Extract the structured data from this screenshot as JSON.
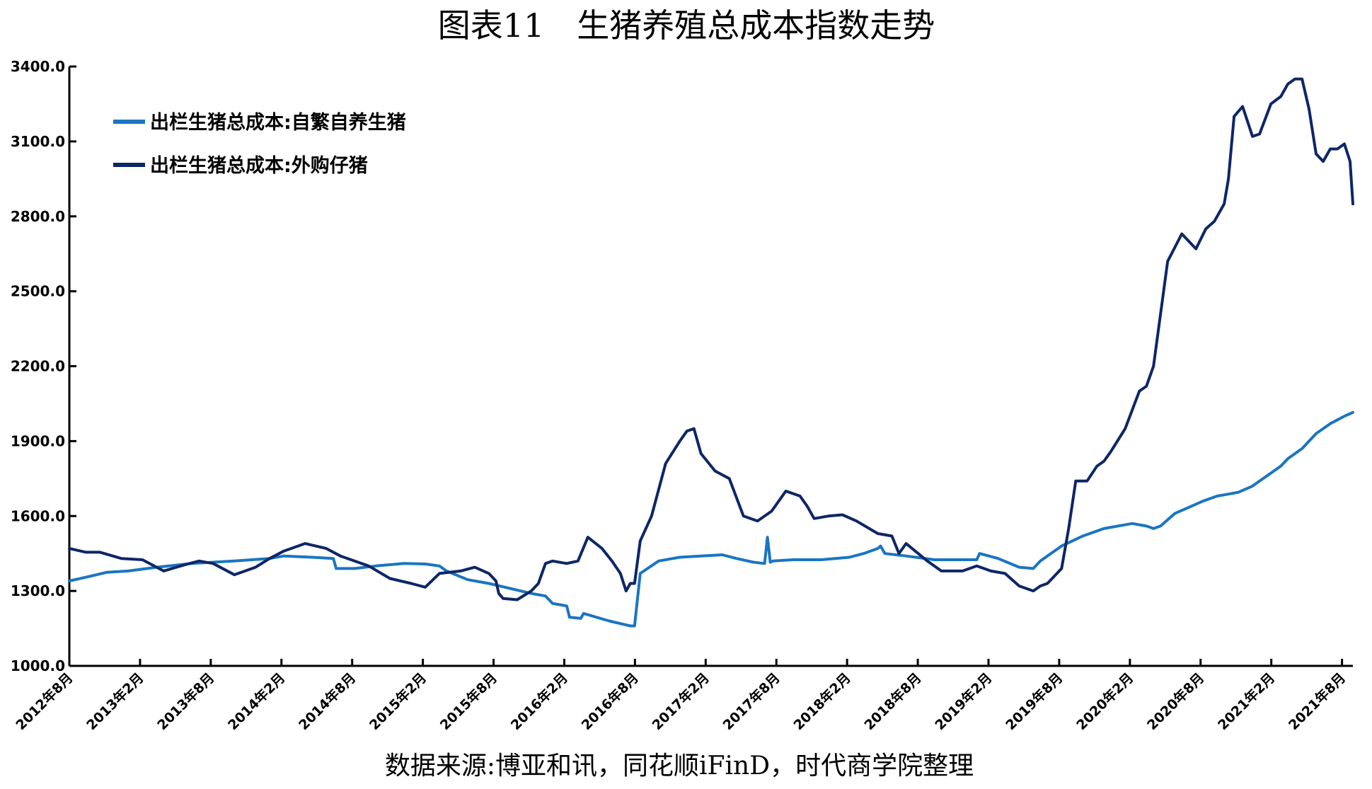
{
  "chart_data": {
    "type": "line",
    "title": "图表11　生猪养殖总成本指数走势",
    "source": "数据来源:博亚和讯，同花顺iFinD，时代商学院整理",
    "xlabel": "",
    "ylabel": "",
    "ylim": [
      1000,
      3400
    ],
    "yticks": [
      1000,
      1300,
      1600,
      1900,
      2200,
      2500,
      2800,
      3100,
      3400
    ],
    "yticks_labels": [
      "1000.0",
      "1300.0",
      "1600.0",
      "1900.0",
      "2200.0",
      "2500.0",
      "2800.0",
      "3100.0",
      "3400.0"
    ],
    "xlim": [
      2012.583,
      2021.66
    ],
    "xticks": [
      2012.583,
      2013.083,
      2013.583,
      2014.083,
      2014.583,
      2015.083,
      2015.583,
      2016.083,
      2016.583,
      2017.083,
      2017.583,
      2018.083,
      2018.583,
      2019.083,
      2019.583,
      2020.083,
      2020.583,
      2021.083,
      2021.583
    ],
    "xticks_labels": [
      "2012年8月",
      "2013年2月",
      "2013年8月",
      "2014年2月",
      "2014年8月",
      "2015年2月",
      "2015年8月",
      "2016年2月",
      "2016年8月",
      "2017年2月",
      "2017年8月",
      "2018年2月",
      "2018年8月",
      "2019年2月",
      "2019年8月",
      "2020年2月",
      "2020年8月",
      "2021年2月",
      "2021年8月"
    ],
    "grid": false,
    "legend_position": "top-left",
    "series": [
      {
        "name": "出栏生猪总成本:自繁自养生猪",
        "color": "#1a75c2",
        "x": [
          2012.583,
          2012.7,
          2012.85,
          2013.0,
          2013.2,
          2013.45,
          2013.75,
          2014.0,
          2014.1,
          2014.3,
          2014.45,
          2014.47,
          2014.6,
          2014.75,
          2014.95,
          2015.1,
          2015.2,
          2015.25,
          2015.4,
          2015.55,
          2015.7,
          2015.85,
          2015.95,
          2016.0,
          2016.05,
          2016.1,
          2016.12,
          2016.2,
          2016.22,
          2016.4,
          2016.55,
          2016.58,
          2016.62,
          2016.75,
          2016.9,
          2017.05,
          2017.2,
          2017.3,
          2017.42,
          2017.5,
          2017.52,
          2017.54,
          2017.56,
          2017.7,
          2017.9,
          2018.1,
          2018.2,
          2018.3,
          2018.32,
          2018.35,
          2018.5,
          2018.7,
          2018.9,
          2019.0,
          2019.02,
          2019.15,
          2019.3,
          2019.4,
          2019.45,
          2019.6,
          2019.75,
          2019.9,
          2020.1,
          2020.2,
          2020.25,
          2020.3,
          2020.4,
          2020.5,
          2020.6,
          2020.7,
          2020.75,
          2020.85,
          2020.95,
          2021.0,
          2021.05,
          2021.1,
          2021.15,
          2021.2,
          2021.3,
          2021.4,
          2021.5,
          2021.6,
          2021.66
        ],
        "values": [
          1340,
          1355,
          1375,
          1380,
          1395,
          1410,
          1420,
          1430,
          1440,
          1435,
          1430,
          1390,
          1390,
          1400,
          1410,
          1408,
          1400,
          1380,
          1345,
          1330,
          1310,
          1290,
          1280,
          1250,
          1245,
          1240,
          1195,
          1190,
          1210,
          1180,
          1160,
          1160,
          1370,
          1420,
          1435,
          1440,
          1445,
          1430,
          1415,
          1410,
          1515,
          1415,
          1420,
          1425,
          1425,
          1435,
          1450,
          1470,
          1480,
          1450,
          1440,
          1425,
          1425,
          1425,
          1450,
          1430,
          1395,
          1390,
          1420,
          1480,
          1520,
          1550,
          1570,
          1560,
          1550,
          1560,
          1610,
          1635,
          1660,
          1680,
          1685,
          1695,
          1720,
          1740,
          1760,
          1780,
          1800,
          1830,
          1870,
          1930,
          1970,
          2000,
          2015
        ]
      },
      {
        "name": "出栏生猪总成本:外购仔猪",
        "color": "#0d2666",
        "x": [
          2012.583,
          2012.7,
          2012.8,
          2012.95,
          2013.1,
          2013.25,
          2013.4,
          2013.5,
          2013.6,
          2013.75,
          2013.9,
          2014.0,
          2014.1,
          2014.25,
          2014.4,
          2014.5,
          2014.6,
          2014.7,
          2014.85,
          2015.0,
          2015.1,
          2015.2,
          2015.35,
          2015.45,
          2015.55,
          2015.6,
          2015.62,
          2015.65,
          2015.75,
          2015.85,
          2015.9,
          2015.95,
          2016.0,
          2016.1,
          2016.18,
          2016.25,
          2016.35,
          2016.42,
          2016.48,
          2016.52,
          2016.55,
          2016.58,
          2016.62,
          2016.7,
          2016.8,
          2016.9,
          2016.95,
          2017.0,
          2017.05,
          2017.15,
          2017.25,
          2017.35,
          2017.45,
          2017.55,
          2017.65,
          2017.75,
          2017.8,
          2017.85,
          2017.95,
          2018.05,
          2018.15,
          2018.3,
          2018.4,
          2018.45,
          2018.5,
          2018.65,
          2018.75,
          2018.9,
          2019.0,
          2019.1,
          2019.2,
          2019.3,
          2019.4,
          2019.45,
          2019.5,
          2019.55,
          2019.6,
          2019.65,
          2019.7,
          2019.78,
          2019.85,
          2019.9,
          2019.95,
          2020.05,
          2020.15,
          2020.2,
          2020.25,
          2020.35,
          2020.45,
          2020.55,
          2020.62,
          2020.68,
          2020.75,
          2020.78,
          2020.82,
          2020.88,
          2020.95,
          2021.0,
          2021.08,
          2021.15,
          2021.2,
          2021.25,
          2021.3,
          2021.35,
          2021.4,
          2021.45,
          2021.5,
          2021.55,
          2021.6,
          2021.64,
          2021.66
        ],
        "values": [
          1470,
          1455,
          1455,
          1430,
          1425,
          1380,
          1405,
          1420,
          1410,
          1365,
          1395,
          1430,
          1460,
          1490,
          1470,
          1440,
          1420,
          1400,
          1350,
          1330,
          1315,
          1370,
          1380,
          1395,
          1370,
          1340,
          1290,
          1270,
          1265,
          1300,
          1330,
          1410,
          1420,
          1410,
          1420,
          1515,
          1470,
          1420,
          1370,
          1300,
          1330,
          1330,
          1500,
          1600,
          1810,
          1900,
          1940,
          1950,
          1850,
          1780,
          1750,
          1600,
          1580,
          1620,
          1700,
          1680,
          1640,
          1590,
          1600,
          1605,
          1580,
          1530,
          1520,
          1450,
          1490,
          1420,
          1380,
          1380,
          1400,
          1380,
          1370,
          1320,
          1300,
          1320,
          1330,
          1360,
          1390,
          1550,
          1740,
          1740,
          1800,
          1820,
          1860,
          1950,
          2100,
          2120,
          2200,
          2620,
          2730,
          2670,
          2750,
          2780,
          2850,
          2950,
          3200,
          3240,
          3120,
          3130,
          3250,
          3280,
          3330,
          3350,
          3350,
          3230,
          3050,
          3020,
          3070,
          3070,
          3090,
          3020,
          2850
        ]
      }
    ]
  }
}
